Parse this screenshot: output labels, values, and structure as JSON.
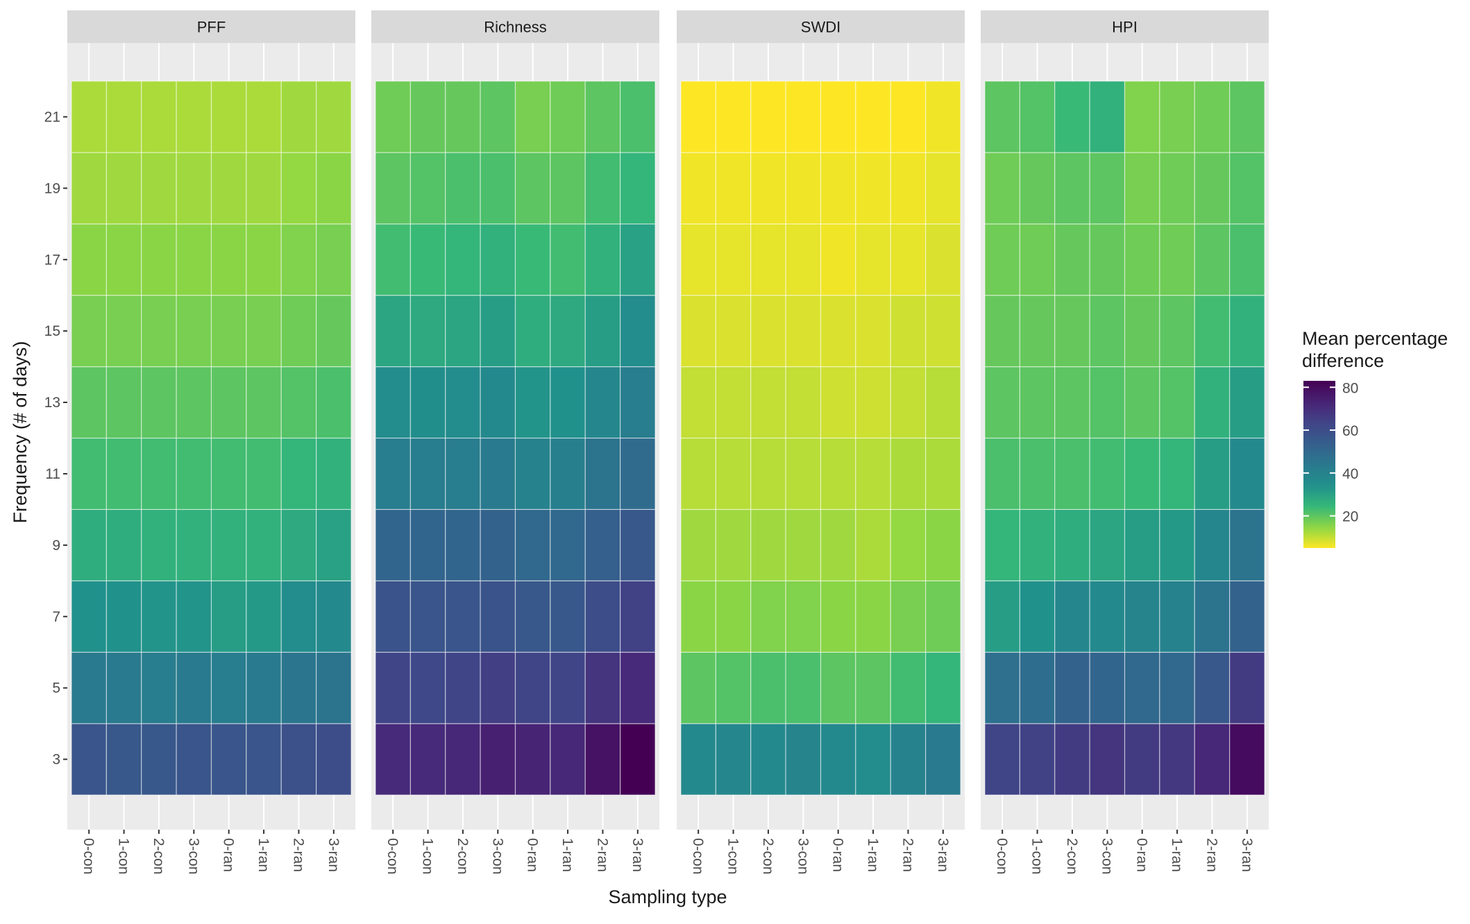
{
  "chart_data": {
    "type": "heatmap",
    "panels": [
      "PFF",
      "Richness",
      "SWDI",
      "HPI"
    ],
    "x_categories": [
      "0-con",
      "1-con",
      "2-con",
      "3-con",
      "0-ran",
      "1-ran",
      "2-ran",
      "3-ran"
    ],
    "y_categories": [
      3,
      5,
      7,
      9,
      11,
      13,
      15,
      17,
      19,
      21
    ],
    "xlabel": "Sampling type",
    "ylabel": "Frequency (# of days)",
    "legend": {
      "title_line1": "Mean percentage",
      "title_line2": "difference",
      "ticks": [
        20,
        40,
        60,
        80
      ],
      "tick_labels": [
        "20",
        "40",
        "60",
        "80"
      ],
      "min": 5,
      "max": 83,
      "palette": "viridis (reversed)",
      "placement": "right"
    },
    "values_note_order": "values[panel][row] with rows ordered from y=3 (bottom) to y=21 (top); each row lists the 8 sampling types",
    "values": {
      "PFF": [
        [
          57,
          56,
          56,
          57,
          57,
          57,
          59,
          60
        ],
        [
          43,
          43,
          42,
          43,
          42,
          43,
          45,
          46
        ],
        [
          34,
          34,
          33,
          33,
          31,
          32,
          36,
          37
        ],
        [
          27,
          27,
          26,
          26,
          26,
          26,
          28,
          30
        ],
        [
          23,
          23,
          23,
          23,
          23,
          23,
          25,
          26
        ],
        [
          20,
          20,
          20,
          20,
          20,
          20,
          21,
          22
        ],
        [
          17,
          17,
          17,
          17,
          17,
          17,
          18,
          19
        ],
        [
          15,
          15,
          15,
          15,
          15,
          15,
          16,
          17
        ],
        [
          13,
          13,
          13,
          13,
          13,
          13,
          14,
          15
        ],
        [
          12,
          12,
          12,
          12,
          12,
          12,
          13,
          13
        ]
      ],
      "Richness": [
        [
          71,
          71,
          72,
          74,
          73,
          72,
          78,
          83
        ],
        [
          63,
          62,
          63,
          65,
          63,
          63,
          68,
          71
        ],
        [
          58,
          57,
          57,
          58,
          56,
          56,
          60,
          64
        ],
        [
          51,
          51,
          51,
          52,
          50,
          50,
          53,
          56
        ],
        [
          42,
          42,
          42,
          43,
          40,
          41,
          46,
          49
        ],
        [
          36,
          35,
          36,
          37,
          33,
          34,
          38,
          42
        ],
        [
          29,
          28,
          29,
          31,
          27,
          28,
          31,
          36
        ],
        [
          23,
          24,
          25,
          26,
          24,
          23,
          26,
          30
        ],
        [
          20,
          21,
          22,
          22,
          20,
          20,
          23,
          25
        ],
        [
          18,
          19,
          19,
          20,
          17,
          18,
          20,
          22
        ]
      ],
      "SWDI": [
        [
          37,
          38,
          37,
          39,
          37,
          36,
          40,
          43
        ],
        [
          20,
          21,
          22,
          22,
          20,
          20,
          23,
          25
        ],
        [
          15,
          15,
          16,
          16,
          15,
          15,
          17,
          18
        ],
        [
          13,
          13,
          13,
          13,
          13,
          12,
          14,
          15
        ],
        [
          11,
          11,
          11,
          11,
          11,
          11,
          12,
          12
        ],
        [
          10,
          10,
          10,
          10,
          9,
          9,
          10,
          11
        ],
        [
          8,
          8,
          8,
          8,
          8,
          8,
          9,
          9
        ],
        [
          7,
          7,
          7,
          7,
          6,
          7,
          7,
          8
        ],
        [
          6,
          6,
          6,
          6,
          6,
          6,
          6,
          7
        ],
        [
          5,
          5,
          5,
          5,
          5,
          5,
          5,
          6
        ]
      ],
      "HPI": [
        [
          63,
          64,
          66,
          68,
          66,
          67,
          72,
          80
        ],
        [
          47,
          48,
          52,
          51,
          50,
          50,
          56,
          66
        ],
        [
          31,
          34,
          38,
          37,
          39,
          40,
          46,
          52
        ],
        [
          25,
          26,
          27,
          29,
          31,
          32,
          38,
          46
        ],
        [
          22,
          22,
          22,
          23,
          24,
          25,
          31,
          37
        ],
        [
          20,
          20,
          20,
          21,
          20,
          21,
          26,
          31
        ],
        [
          19,
          19,
          19,
          20,
          19,
          20,
          23,
          26
        ],
        [
          18,
          18,
          19,
          19,
          18,
          18,
          20,
          22
        ],
        [
          18,
          19,
          20,
          20,
          17,
          18,
          19,
          21
        ],
        [
          20,
          21,
          24,
          26,
          16,
          17,
          18,
          20
        ]
      ]
    }
  }
}
